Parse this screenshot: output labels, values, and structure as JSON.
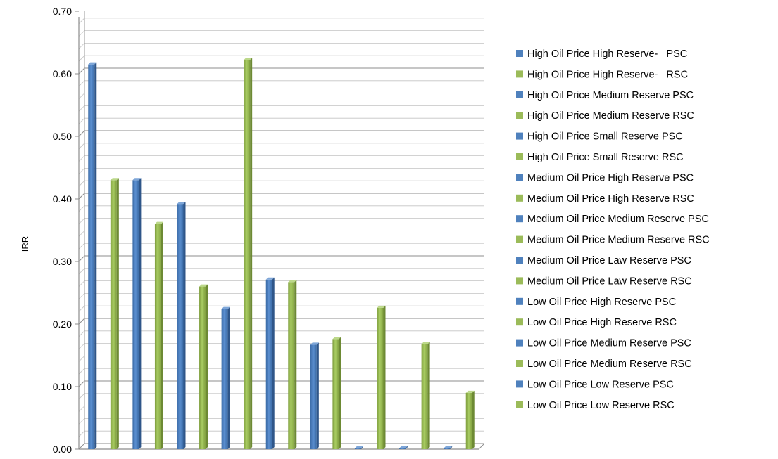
{
  "chart_data": {
    "type": "bar",
    "ylabel": "IRR",
    "ylim": [
      0,
      0.7
    ],
    "ytick_step": 0.1,
    "yticks": [
      "0.00",
      "0.10",
      "0.20",
      "0.30",
      "0.40",
      "0.50",
      "0.60",
      "0.70"
    ],
    "minor_step": 0.02,
    "grid": true,
    "legend_position": "right",
    "colors": {
      "PSC": "#4f81bd",
      "RSC": "#9bbb59"
    },
    "series": [
      {
        "name": "High Oil Price High Reserve-   PSC",
        "value": 0.615,
        "color": "#4f81bd"
      },
      {
        "name": "High Oil Price High Reserve-   RSC",
        "value": 0.43,
        "color": "#9bbb59"
      },
      {
        "name": "High Oil Price Medium Reserve PSC",
        "value": 0.43,
        "color": "#4f81bd"
      },
      {
        "name": "High Oil Price Medium Reserve RSC",
        "value": 0.36,
        "color": "#9bbb59"
      },
      {
        "name": "High Oil Price Small Reserve PSC",
        "value": 0.392,
        "color": "#4f81bd"
      },
      {
        "name": "High Oil Price Small Reserve RSC",
        "value": 0.26,
        "color": "#9bbb59"
      },
      {
        "name": "Medium Oil Price High Reserve PSC",
        "value": 0.224,
        "color": "#4f81bd"
      },
      {
        "name": "Medium Oil Price High Reserve RSC",
        "value": 0.622,
        "color": "#9bbb59"
      },
      {
        "name": "Medium Oil Price Medium Reserve PSC",
        "value": 0.271,
        "color": "#4f81bd"
      },
      {
        "name": "Medium Oil Price Medium Reserve RSC",
        "value": 0.267,
        "color": "#9bbb59"
      },
      {
        "name": "Medium Oil Price Law Reserve PSC",
        "value": 0.167,
        "color": "#4f81bd"
      },
      {
        "name": "Medium Oil Price Law Reserve RSC",
        "value": 0.176,
        "color": "#9bbb59"
      },
      {
        "name": "Low Oil Price High Reserve PSC",
        "value": 0,
        "color": "#4f81bd"
      },
      {
        "name": "Low Oil Price High Reserve RSC",
        "value": 0.226,
        "color": "#9bbb59"
      },
      {
        "name": "Low Oil Price Medium Reserve PSC",
        "value": 0,
        "color": "#4f81bd"
      },
      {
        "name": "Low Oil Price Medium Reserve RSC",
        "value": 0.168,
        "color": "#9bbb59"
      },
      {
        "name": "Low Oil Price Low Reserve PSC",
        "value": 0,
        "color": "#4f81bd"
      },
      {
        "name": "Low Oil Price Low Reserve RSC",
        "value": 0.09,
        "color": "#9bbb59"
      }
    ]
  }
}
